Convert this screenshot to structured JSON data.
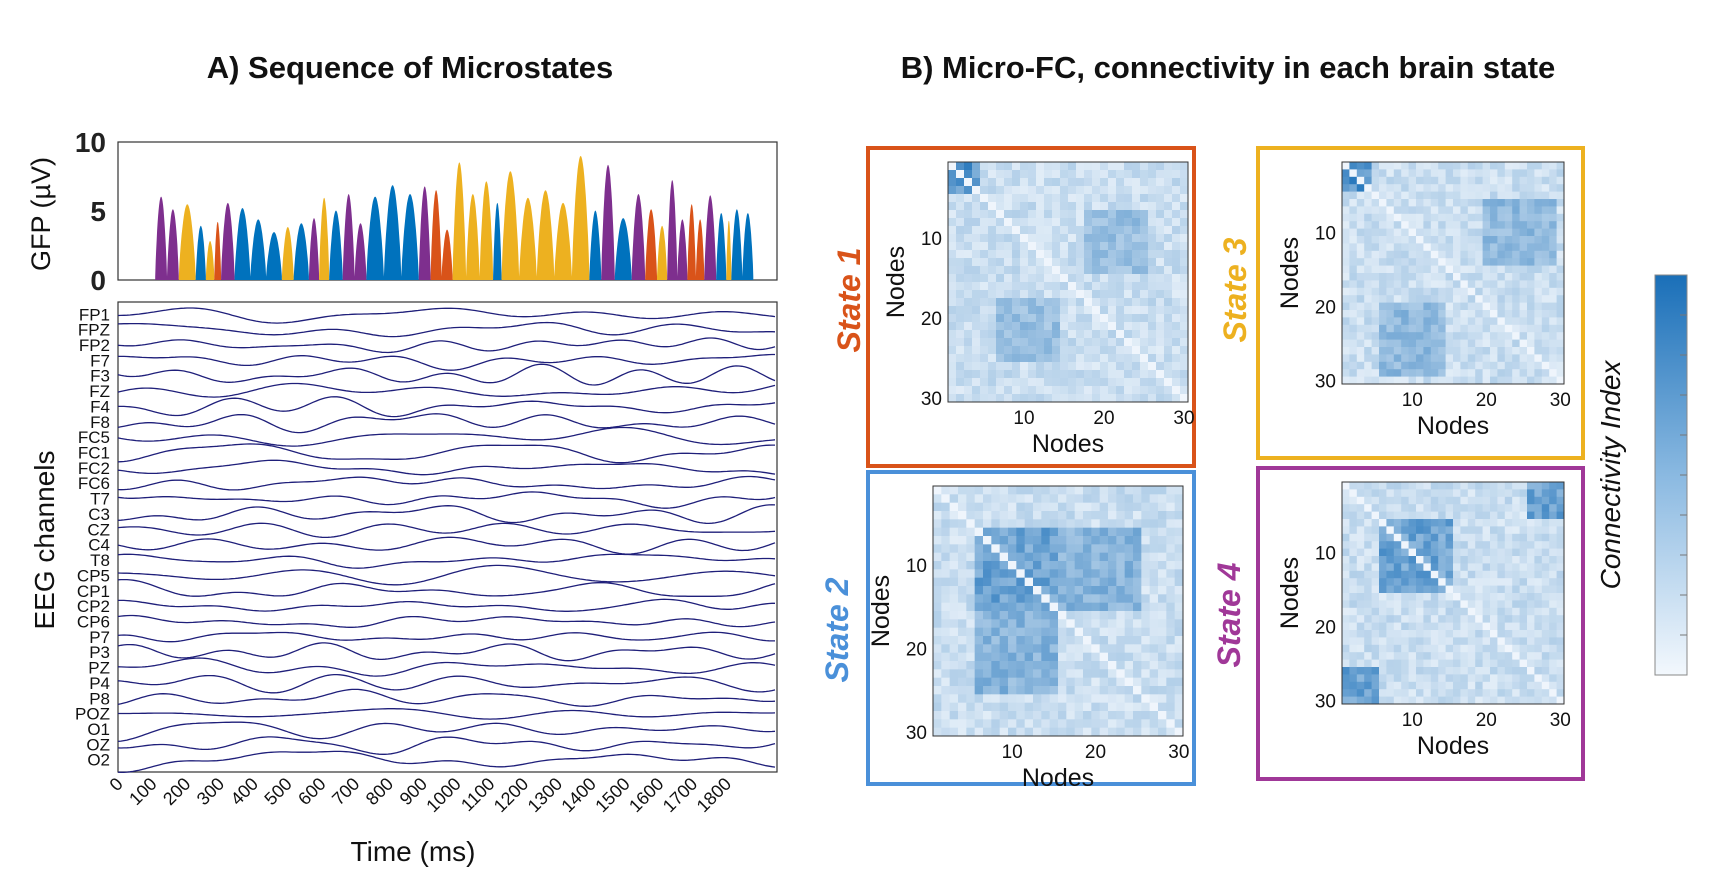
{
  "panel_a": {
    "title": "A) Sequence of Microstates",
    "gfp": {
      "ylabel": "GFP (µV)",
      "yticks": [
        "0",
        "5",
        "10"
      ],
      "ylim": [
        0,
        10
      ],
      "time_range_ms": [
        0,
        1950
      ],
      "state_colors": {
        "1": "#D95319",
        "2": "#0072BD",
        "3": "#EDB120",
        "4": "#7E2F8E"
      },
      "segments": [
        {
          "state": 4,
          "start": 110,
          "end": 180,
          "peaks": [
            6.3,
            5.3
          ]
        },
        {
          "state": 3,
          "start": 180,
          "end": 230,
          "peaks": [
            5.7
          ]
        },
        {
          "state": 2,
          "start": 230,
          "end": 260,
          "peaks": [
            4.0
          ]
        },
        {
          "state": 3,
          "start": 260,
          "end": 285,
          "peaks": [
            2.8
          ]
        },
        {
          "state": 1,
          "start": 285,
          "end": 305,
          "peaks": [
            4.3
          ]
        },
        {
          "state": 4,
          "start": 305,
          "end": 345,
          "peaks": [
            5.8
          ]
        },
        {
          "state": 2,
          "start": 345,
          "end": 485,
          "peaks": [
            5.4,
            4.5,
            3.5
          ]
        },
        {
          "state": 3,
          "start": 485,
          "end": 520,
          "peaks": [
            3.9
          ]
        },
        {
          "state": 2,
          "start": 520,
          "end": 565,
          "peaks": [
            4.2
          ]
        },
        {
          "state": 4,
          "start": 565,
          "end": 595,
          "peaks": [
            4.6
          ]
        },
        {
          "state": 3,
          "start": 595,
          "end": 625,
          "peaks": [
            6.2
          ]
        },
        {
          "state": 2,
          "start": 625,
          "end": 665,
          "peaks": [
            5.2
          ]
        },
        {
          "state": 4,
          "start": 665,
          "end": 735,
          "peaks": [
            6.5,
            4.2
          ]
        },
        {
          "state": 2,
          "start": 735,
          "end": 890,
          "peaks": [
            6.3,
            7.2,
            6.5
          ]
        },
        {
          "state": 4,
          "start": 890,
          "end": 925,
          "peaks": [
            7.1
          ]
        },
        {
          "state": 1,
          "start": 925,
          "end": 990,
          "peaks": [
            6.8,
            3.7
          ]
        },
        {
          "state": 3,
          "start": 990,
          "end": 1110,
          "peaks": [
            9.0,
            6.5,
            7.5
          ]
        },
        {
          "state": 2,
          "start": 1110,
          "end": 1135,
          "peaks": [
            5.8
          ]
        },
        {
          "state": 3,
          "start": 1135,
          "end": 1395,
          "peaks": [
            8.3,
            6.2,
            6.8,
            5.8,
            9.5
          ]
        },
        {
          "state": 2,
          "start": 1395,
          "end": 1430,
          "peaks": [
            5.2
          ]
        },
        {
          "state": 4,
          "start": 1430,
          "end": 1470,
          "peaks": [
            8.8
          ]
        },
        {
          "state": 2,
          "start": 1470,
          "end": 1520,
          "peaks": [
            4.6
          ]
        },
        {
          "state": 4,
          "start": 1520,
          "end": 1560,
          "peaks": [
            6.5
          ]
        },
        {
          "state": 1,
          "start": 1560,
          "end": 1595,
          "peaks": [
            5.3
          ]
        },
        {
          "state": 3,
          "start": 1595,
          "end": 1625,
          "peaks": [
            4.0
          ]
        },
        {
          "state": 4,
          "start": 1625,
          "end": 1685,
          "peaks": [
            7.6,
            4.5
          ]
        },
        {
          "state": 1,
          "start": 1685,
          "end": 1735,
          "peaks": [
            5.7,
            4.5
          ]
        },
        {
          "state": 4,
          "start": 1735,
          "end": 1770,
          "peaks": [
            6.4
          ]
        },
        {
          "state": 2,
          "start": 1770,
          "end": 1800,
          "peaks": [
            5.0
          ]
        },
        {
          "state": 3,
          "start": 1800,
          "end": 1815,
          "peaks": [
            4.4
          ]
        },
        {
          "state": 2,
          "start": 1815,
          "end": 1880,
          "peaks": [
            5.3,
            5.0
          ]
        }
      ]
    },
    "eeg": {
      "ylabel": "EEG channels",
      "xlabel": "Time (ms)",
      "channels": [
        "FP1",
        "FPZ",
        "FP2",
        "F7",
        "F3",
        "FZ",
        "F4",
        "F8",
        "FC5",
        "FC1",
        "FC2",
        "FC6",
        "T7",
        "C3",
        "CZ",
        "C4",
        "T8",
        "CP5",
        "CP1",
        "CP2",
        "CP6",
        "P7",
        "P3",
        "PZ",
        "P4",
        "P8",
        "POZ",
        "O1",
        "OZ",
        "O2"
      ],
      "xticks": [
        "0",
        "100",
        "200",
        "300",
        "400",
        "500",
        "600",
        "700",
        "800",
        "900",
        "1000",
        "1100",
        "1200",
        "1300",
        "1400",
        "1500",
        "1600",
        "1700",
        "1800"
      ],
      "line_color": "#1f1f7a"
    }
  },
  "panel_b": {
    "title": "B) Micro-FC, connectivity in each brain  state",
    "colorbar_label": "Connectivity Index",
    "axis_label": "Nodes",
    "ticks": [
      "10",
      "20",
      "30"
    ],
    "nodes": 30,
    "states": [
      {
        "label": "State 1",
        "color": "#D95319",
        "blocks": [
          [
            0,
            4,
            0,
            4,
            0.9
          ],
          [
            6,
            14,
            17,
            25,
            0.5
          ]
        ]
      },
      {
        "label": "State 2",
        "color": "#4A90D9",
        "blocks": [
          [
            5,
            15,
            5,
            15,
            0.75
          ],
          [
            15,
            25,
            5,
            15,
            0.6
          ]
        ]
      },
      {
        "label": "State 3",
        "color": "#EDB120",
        "blocks": [
          [
            0,
            4,
            0,
            4,
            0.9
          ],
          [
            5,
            14,
            19,
            29,
            0.55
          ]
        ]
      },
      {
        "label": "State 4",
        "color": "#A03898",
        "blocks": [
          [
            5,
            15,
            5,
            15,
            0.75
          ],
          [
            0,
            5,
            25,
            30,
            0.75
          ]
        ]
      }
    ]
  }
}
